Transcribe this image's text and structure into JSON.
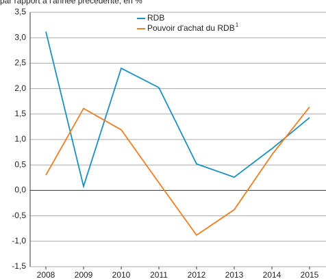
{
  "chart_data": {
    "type": "line",
    "subtitle": "par rapport à l'année précédente, en %",
    "categories": [
      "2008",
      "2009",
      "2010",
      "2011",
      "2012",
      "2013",
      "2014",
      "2015"
    ],
    "series": [
      {
        "name": "RDB",
        "color": "#1a8fc0",
        "values": [
          3.12,
          0.08,
          2.4,
          2.02,
          0.52,
          0.26,
          0.82,
          1.43
        ]
      },
      {
        "name": "Pouvoir d'achat du RDB",
        "color": "#ee7d22",
        "values": [
          0.3,
          1.61,
          1.19,
          0.15,
          -0.88,
          -0.38,
          0.7,
          1.64
        ]
      }
    ],
    "legend_superscript": "1",
    "ylim": [
      -1.5,
      3.5
    ],
    "yticks": [
      {
        "value": -1.5,
        "label": "-1,5"
      },
      {
        "value": -1,
        "label": "-1,0"
      },
      {
        "value": -0.5,
        "label": "-0,5"
      },
      {
        "value": 0,
        "label": "0,0"
      },
      {
        "value": 0.5,
        "label": "0,5"
      },
      {
        "value": 1,
        "label": "1,0"
      },
      {
        "value": 1.5,
        "label": "1,5"
      },
      {
        "value": 2,
        "label": "2,0"
      },
      {
        "value": 2.5,
        "label": "2,5"
      },
      {
        "value": 3,
        "label": "3,0"
      },
      {
        "value": 3.5,
        "label": "3,5"
      }
    ],
    "grid": true
  }
}
